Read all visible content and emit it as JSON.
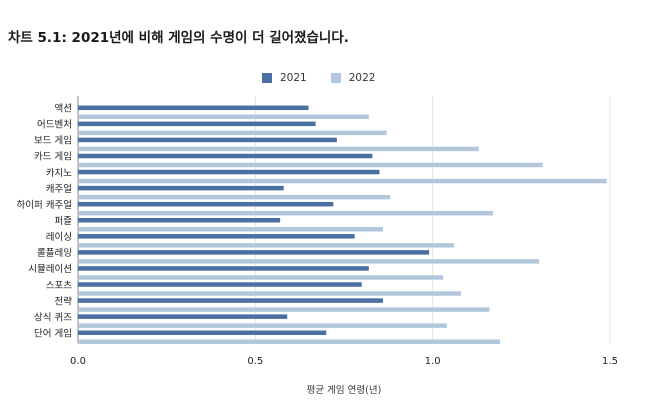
{
  "title": "차트 5.1: 2021년에 비해 게임의 수명이 더 길어졌습니다.",
  "colors": {
    "s2021": "#4b6fa5",
    "s2022": "#b2c6de",
    "grid": "#e3e3e3",
    "axis": "#888888"
  },
  "chart_data": {
    "type": "bar",
    "orientation": "horizontal",
    "categories": [
      "액션",
      "어드벤처",
      "보드 게임",
      "카드 게임",
      "카지노",
      "캐주얼",
      "하이퍼 캐주얼",
      "퍼즐",
      "레이싱",
      "롤플레잉",
      "시뮬레이션",
      "스포츠",
      "전략",
      "상식 퀴즈",
      "단어 게임"
    ],
    "series": [
      {
        "name": "2021",
        "values": [
          0.65,
          0.67,
          0.73,
          0.83,
          0.85,
          0.58,
          0.72,
          0.57,
          0.78,
          0.99,
          0.82,
          0.8,
          0.86,
          0.59,
          0.7
        ]
      },
      {
        "name": "2022",
        "values": [
          0.82,
          0.87,
          1.13,
          1.31,
          1.49,
          0.88,
          1.17,
          0.86,
          1.06,
          1.3,
          1.03,
          1.08,
          1.16,
          1.04,
          1.19
        ]
      }
    ],
    "xlim": [
      0,
      1.5
    ],
    "xticks": [
      "0.0",
      "0.5",
      "1.0",
      "1.5"
    ],
    "xlabel": "평균 게임 연령(년)",
    "ylabel": "",
    "grid": true,
    "legend": "top-center"
  }
}
